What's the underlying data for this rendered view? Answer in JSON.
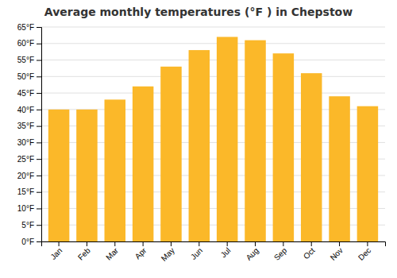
{
  "chart_data": {
    "type": "bar",
    "title": "Average monthly temperatures (°F ) in Chepstow",
    "categories": [
      "Jan",
      "Feb",
      "Mar",
      "Apr",
      "May",
      "Jun",
      "Jul",
      "Aug",
      "Sep",
      "Oct",
      "Nov",
      "Dec"
    ],
    "values": [
      40,
      40,
      43,
      47,
      53,
      58,
      62,
      61,
      57,
      51,
      44,
      41
    ],
    "color": "#FBB829",
    "ylim": [
      0,
      65
    ],
    "yticks": [
      {
        "value": 0,
        "label": "0°F"
      },
      {
        "value": 5,
        "label": "5°F"
      },
      {
        "value": 10,
        "label": "10°F"
      },
      {
        "value": 15,
        "label": "15°F"
      },
      {
        "value": 20,
        "label": "20°F"
      },
      {
        "value": 25,
        "label": "25°F"
      },
      {
        "value": 30,
        "label": "30°F"
      },
      {
        "value": 35,
        "label": "35°F"
      },
      {
        "value": 40,
        "label": "40°F"
      },
      {
        "value": 45,
        "label": "45°F"
      },
      {
        "value": 50,
        "label": "50°F"
      },
      {
        "value": 55,
        "label": "55°F"
      },
      {
        "value": 60,
        "label": "60°F"
      },
      {
        "value": 65,
        "label": "65°F"
      }
    ],
    "grid": true
  }
}
